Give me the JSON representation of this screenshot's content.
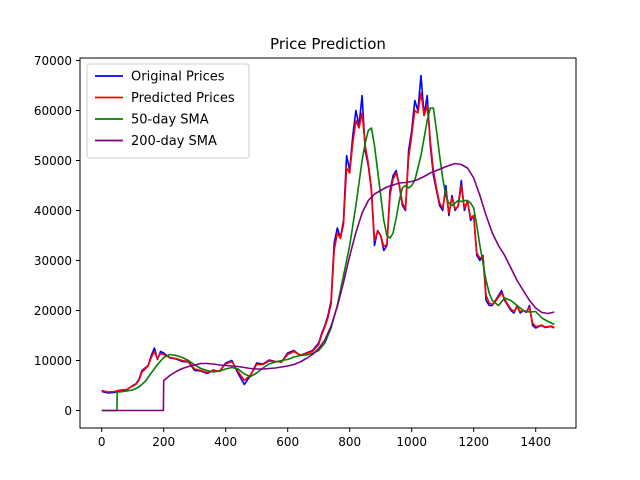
{
  "chart_data": {
    "type": "line",
    "title": "Price Prediction",
    "xlabel": "",
    "ylabel": "",
    "xlim": [
      -70,
      1530
    ],
    "ylim": [
      -3500,
      70500
    ],
    "xticks": [
      0,
      200,
      400,
      600,
      800,
      1000,
      1200,
      1400
    ],
    "yticks": [
      0,
      10000,
      20000,
      30000,
      40000,
      50000,
      60000,
      70000
    ],
    "grid": false,
    "legend_position": "top-left",
    "series": [
      {
        "name": "Original Prices",
        "color": "#0000ff",
        "x": [
          0,
          20,
          40,
          60,
          80,
          100,
          110,
          120,
          130,
          140,
          150,
          160,
          170,
          180,
          190,
          200,
          220,
          240,
          260,
          280,
          300,
          320,
          340,
          360,
          380,
          400,
          420,
          440,
          460,
          480,
          500,
          520,
          540,
          560,
          580,
          600,
          620,
          640,
          660,
          680,
          700,
          710,
          720,
          730,
          740,
          750,
          760,
          770,
          780,
          790,
          800,
          810,
          820,
          830,
          840,
          850,
          860,
          870,
          880,
          890,
          900,
          910,
          920,
          930,
          940,
          950,
          960,
          970,
          980,
          990,
          1000,
          1010,
          1020,
          1030,
          1040,
          1050,
          1060,
          1070,
          1080,
          1090,
          1100,
          1110,
          1120,
          1130,
          1140,
          1150,
          1160,
          1170,
          1180,
          1190,
          1200,
          1210,
          1220,
          1230,
          1240,
          1250,
          1260,
          1270,
          1280,
          1290,
          1300,
          1310,
          1320,
          1330,
          1340,
          1350,
          1360,
          1370,
          1380,
          1390,
          1400,
          1410,
          1420,
          1430,
          1440,
          1450,
          1460
        ],
        "values": [
          3800,
          3500,
          3600,
          4000,
          4100,
          5000,
          5300,
          6200,
          8000,
          8500,
          9000,
          11000,
          12500,
          10200,
          11800,
          11500,
          10500,
          10300,
          9800,
          9700,
          8000,
          7900,
          7400,
          8100,
          7800,
          9500,
          10000,
          7400,
          5200,
          7000,
          9500,
          9300,
          10100,
          9800,
          9700,
          11500,
          12000,
          11000,
          11500,
          12000,
          13500,
          15500,
          17000,
          19000,
          22000,
          33500,
          36500,
          34500,
          38000,
          51000,
          48000,
          55000,
          60000,
          57000,
          63000,
          52000,
          49000,
          44000,
          33000,
          36000,
          35000,
          32000,
          33000,
          44000,
          47000,
          48000,
          45000,
          41000,
          40000,
          52000,
          56000,
          62000,
          60000,
          67000,
          59000,
          63000,
          53000,
          47000,
          44000,
          41000,
          40000,
          45000,
          39000,
          43000,
          40000,
          41000,
          46000,
          40000,
          42000,
          38000,
          39000,
          31000,
          30000,
          31000,
          22000,
          21000,
          21000,
          22000,
          23000,
          24000,
          22000,
          21000,
          20000,
          19500,
          21000,
          19500,
          20000,
          19600,
          21000,
          17000,
          16500,
          16800,
          17000,
          16600,
          16700,
          16800,
          16500
        ]
      },
      {
        "name": "Predicted Prices",
        "color": "#ff0000",
        "x": [
          0,
          20,
          40,
          60,
          80,
          100,
          110,
          120,
          130,
          140,
          150,
          160,
          170,
          180,
          190,
          200,
          220,
          240,
          260,
          280,
          300,
          320,
          340,
          360,
          380,
          400,
          420,
          440,
          460,
          480,
          500,
          520,
          540,
          560,
          580,
          600,
          620,
          640,
          660,
          680,
          700,
          710,
          720,
          730,
          740,
          750,
          760,
          770,
          780,
          790,
          800,
          810,
          820,
          830,
          840,
          850,
          860,
          870,
          880,
          890,
          900,
          910,
          920,
          930,
          940,
          950,
          960,
          970,
          980,
          990,
          1000,
          1010,
          1020,
          1030,
          1040,
          1050,
          1060,
          1070,
          1080,
          1090,
          1100,
          1110,
          1120,
          1130,
          1140,
          1150,
          1160,
          1170,
          1180,
          1190,
          1200,
          1210,
          1220,
          1230,
          1240,
          1250,
          1260,
          1270,
          1280,
          1290,
          1300,
          1310,
          1320,
          1330,
          1340,
          1350,
          1360,
          1370,
          1380,
          1390,
          1400,
          1410,
          1420,
          1430,
          1440,
          1450,
          1460
        ],
        "values": [
          4000,
          3700,
          3800,
          4100,
          4200,
          4900,
          5200,
          6000,
          7700,
          8300,
          8900,
          10600,
          11800,
          10400,
          11400,
          11200,
          10600,
          10400,
          10000,
          9800,
          8300,
          8000,
          7600,
          8000,
          7900,
          9300,
          9800,
          7800,
          6000,
          7100,
          9200,
          9200,
          9900,
          9800,
          9700,
          11200,
          11800,
          11100,
          11400,
          11800,
          13200,
          15200,
          16700,
          18600,
          21300,
          32000,
          35500,
          34400,
          37200,
          48500,
          47500,
          53500,
          58000,
          56500,
          59500,
          53000,
          49500,
          44500,
          34000,
          35800,
          35000,
          32800,
          33200,
          43000,
          46300,
          47500,
          45200,
          41500,
          40300,
          50500,
          55000,
          60000,
          59500,
          63500,
          59000,
          61000,
          54000,
          48000,
          44500,
          41500,
          40500,
          44000,
          39500,
          42500,
          40300,
          40800,
          45000,
          40500,
          41800,
          38500,
          39000,
          31500,
          30500,
          30800,
          23000,
          21500,
          21200,
          21800,
          22700,
          23500,
          22300,
          21200,
          20300,
          19800,
          20700,
          19800,
          20000,
          19700,
          20600,
          17500,
          16800,
          16900,
          17100,
          16700,
          16800,
          16900,
          16600
        ]
      },
      {
        "name": "50-day SMA",
        "color": "#008000",
        "x": [
          0,
          49,
          50,
          60,
          80,
          100,
          120,
          140,
          160,
          180,
          200,
          220,
          240,
          260,
          280,
          300,
          320,
          340,
          360,
          380,
          400,
          420,
          440,
          460,
          480,
          500,
          520,
          540,
          560,
          580,
          600,
          620,
          640,
          660,
          680,
          700,
          720,
          740,
          760,
          780,
          800,
          820,
          840,
          850,
          860,
          870,
          880,
          890,
          900,
          910,
          920,
          930,
          940,
          950,
          960,
          970,
          980,
          990,
          1000,
          1010,
          1020,
          1030,
          1040,
          1050,
          1060,
          1070,
          1080,
          1090,
          1100,
          1110,
          1120,
          1130,
          1140,
          1150,
          1160,
          1170,
          1180,
          1190,
          1200,
          1210,
          1220,
          1230,
          1240,
          1250,
          1260,
          1280,
          1300,
          1320,
          1340,
          1360,
          1380,
          1400,
          1420,
          1440,
          1460
        ],
        "values": [
          0,
          0,
          3700,
          3700,
          3900,
          4100,
          4700,
          5800,
          7500,
          9200,
          10600,
          11200,
          11000,
          10600,
          10000,
          9100,
          8400,
          8000,
          7700,
          7900,
          8300,
          8600,
          8300,
          7300,
          6800,
          7500,
          8500,
          9300,
          9700,
          10000,
          10200,
          10700,
          11000,
          11100,
          11400,
          12000,
          13500,
          16500,
          21000,
          27000,
          33000,
          41000,
          50000,
          53500,
          56000,
          56500,
          53000,
          48000,
          43000,
          38000,
          35000,
          34500,
          35500,
          38500,
          42000,
          44500,
          45000,
          44500,
          45000,
          46000,
          48500,
          51000,
          54500,
          58000,
          60500,
          60500,
          56000,
          51000,
          46500,
          43000,
          41500,
          41000,
          41500,
          42000,
          41800,
          42000,
          42000,
          41500,
          40500,
          37000,
          33000,
          29500,
          26000,
          23500,
          22000,
          21000,
          22500,
          22000,
          21000,
          20000,
          19700,
          19800,
          18500,
          17800,
          17200
        ]
      },
      {
        "name": "200-day SMA",
        "color": "#800080",
        "x": [
          0,
          199,
          200,
          220,
          240,
          260,
          280,
          300,
          320,
          340,
          360,
          380,
          400,
          420,
          440,
          460,
          480,
          500,
          520,
          540,
          560,
          580,
          600,
          620,
          640,
          660,
          680,
          700,
          720,
          740,
          760,
          780,
          800,
          820,
          840,
          860,
          880,
          900,
          920,
          940,
          960,
          980,
          1000,
          1020,
          1040,
          1060,
          1080,
          1100,
          1120,
          1140,
          1160,
          1180,
          1200,
          1220,
          1240,
          1260,
          1280,
          1300,
          1320,
          1340,
          1360,
          1380,
          1400,
          1420,
          1440,
          1460
        ],
        "values": [
          0,
          0,
          6000,
          7000,
          7800,
          8400,
          8800,
          9100,
          9400,
          9400,
          9300,
          9100,
          9000,
          8900,
          8800,
          8600,
          8400,
          8300,
          8300,
          8400,
          8500,
          8700,
          8900,
          9200,
          9700,
          10400,
          11200,
          12400,
          14100,
          16900,
          20800,
          25600,
          30900,
          35600,
          39500,
          42000,
          43300,
          44000,
          44700,
          45100,
          45500,
          45600,
          45800,
          46200,
          46800,
          47500,
          48000,
          48500,
          49000,
          49400,
          49200,
          48500,
          46500,
          43000,
          39000,
          35500,
          33000,
          31000,
          28500,
          26000,
          24000,
          22000,
          20500,
          19600,
          19400,
          19700
        ]
      }
    ]
  }
}
